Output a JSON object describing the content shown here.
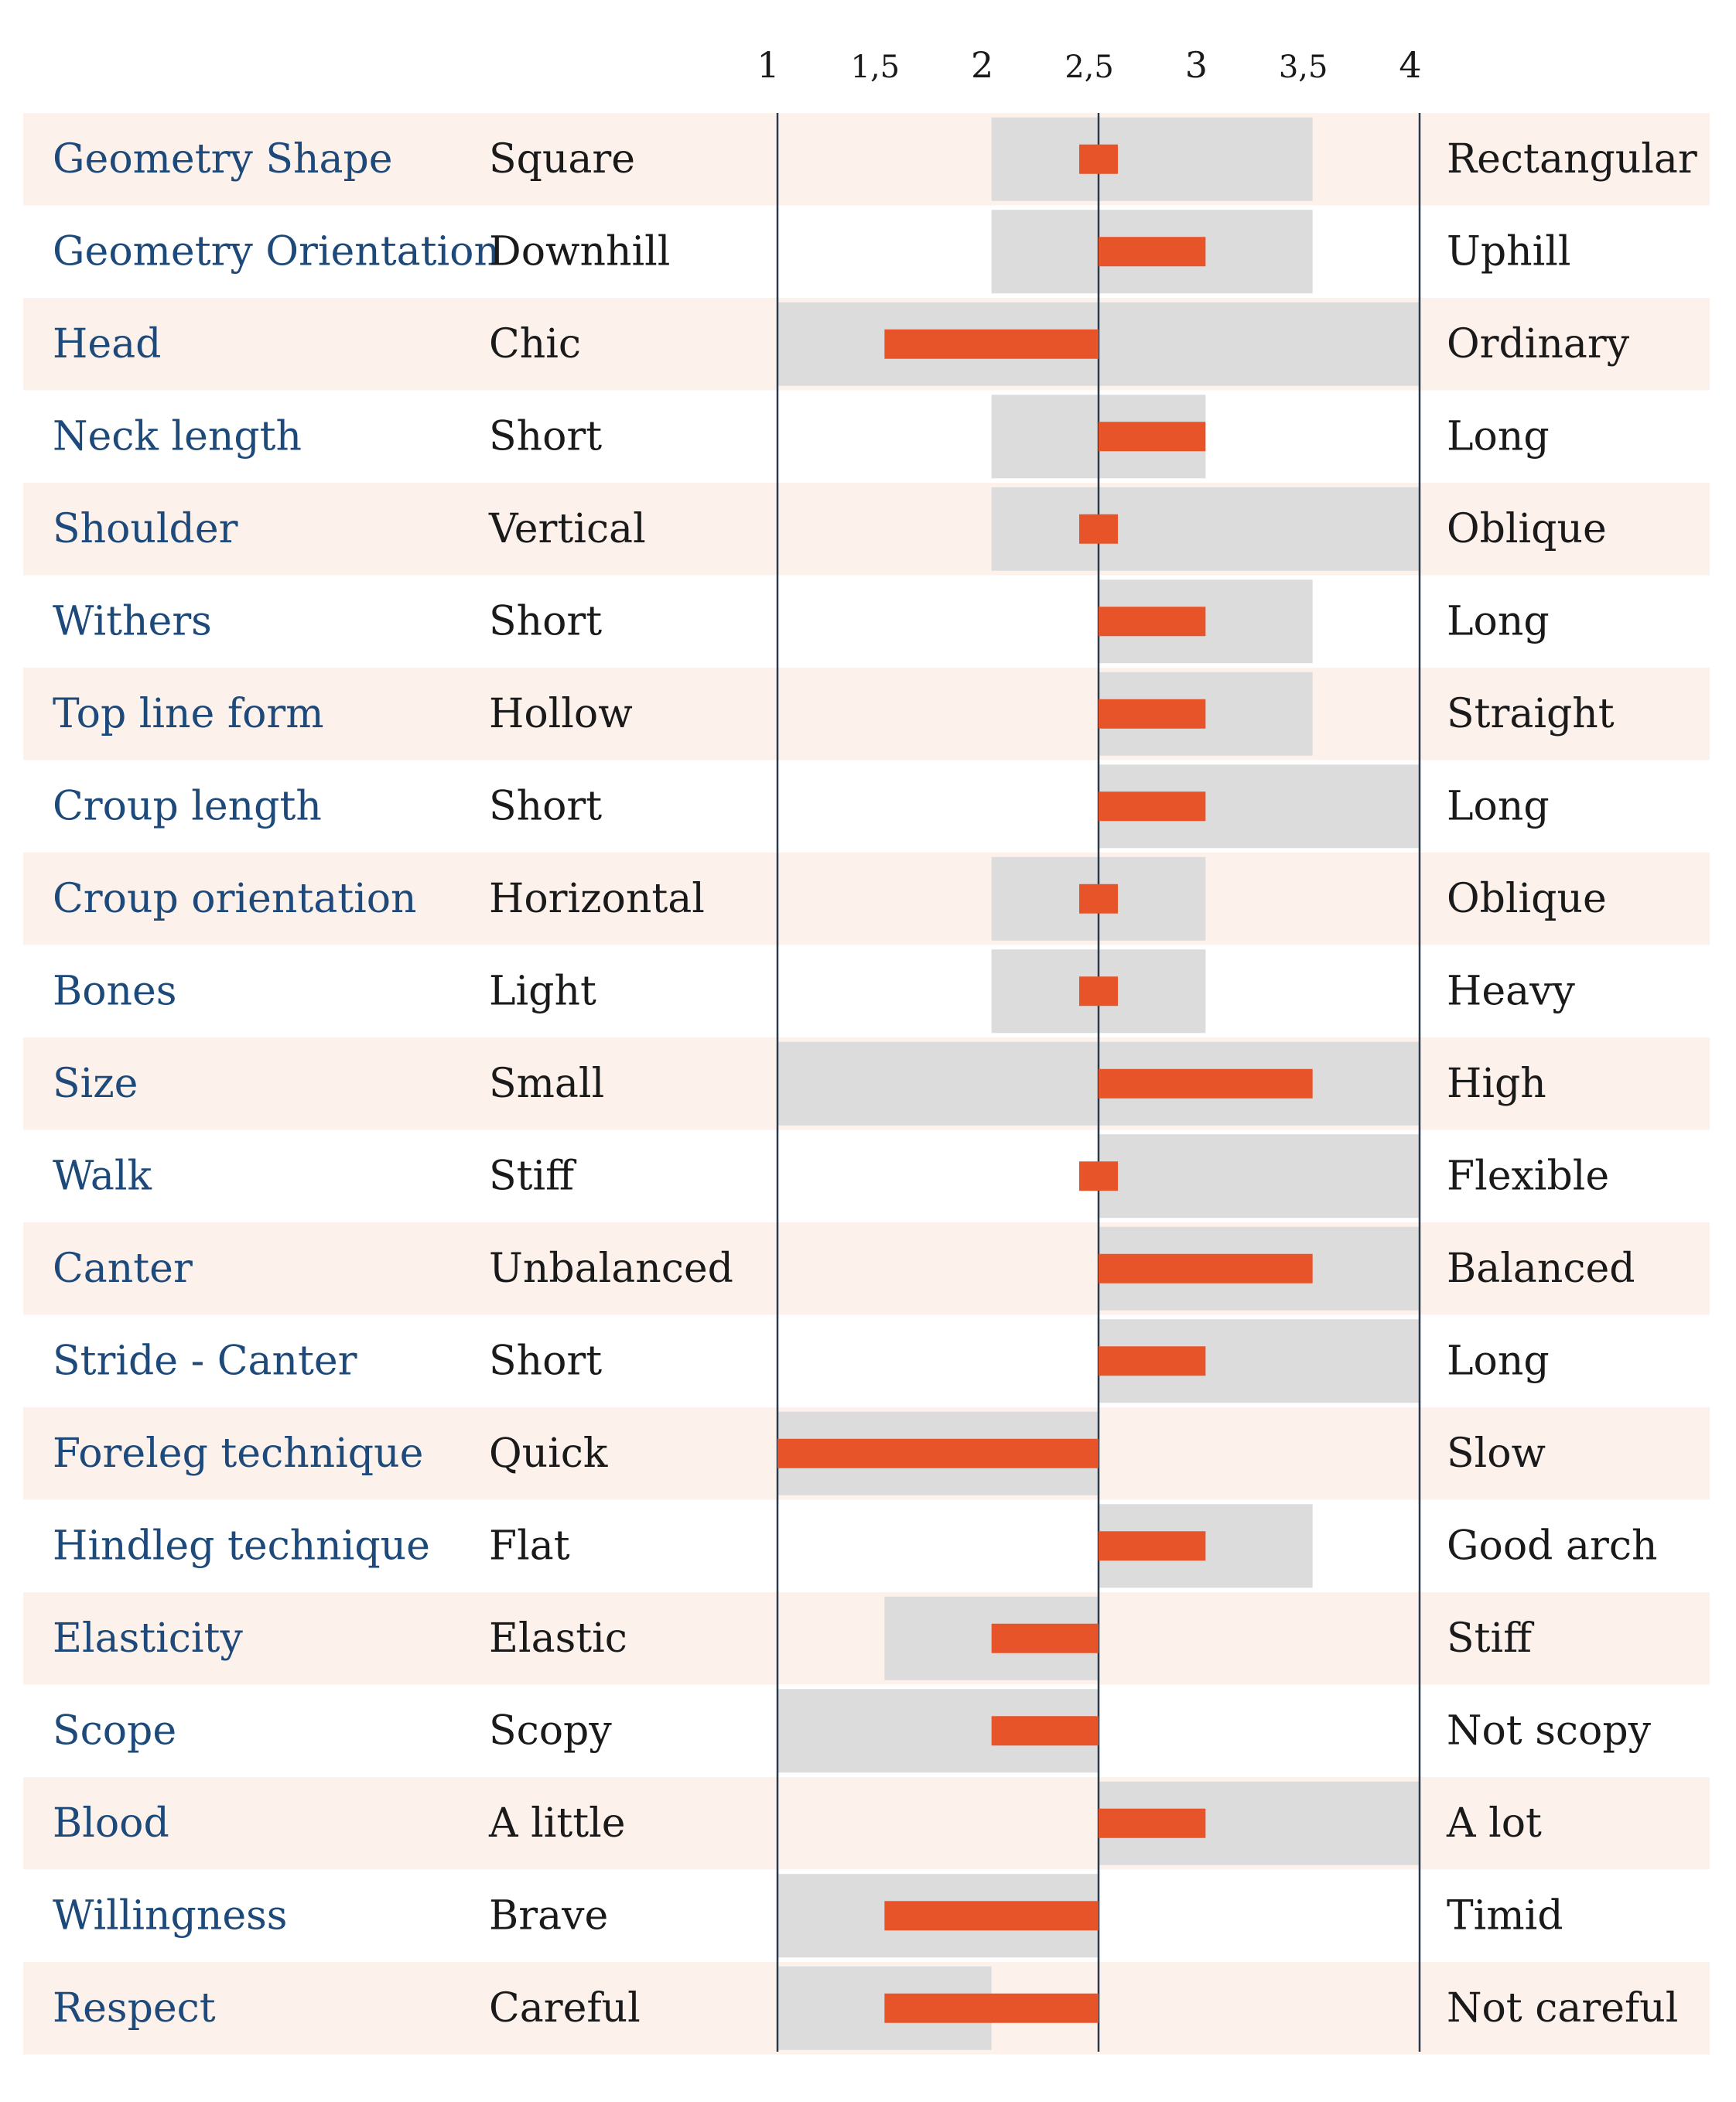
{
  "chart_data": {
    "type": "bar",
    "title": "",
    "xlabel": "",
    "ylabel": "",
    "xlim": [
      1,
      4
    ],
    "midpoint": 2.5,
    "ticks": [
      "1",
      "1,5",
      "2",
      "2,5",
      "3",
      "3,5",
      "4"
    ],
    "tick_values": [
      1,
      1.5,
      2,
      2.5,
      3,
      3.5,
      4
    ],
    "colors": {
      "trait_text": "#1d4a7a",
      "band_odd": "#fdf1ec",
      "band_even": "#ffffff",
      "range": "#dcdcdc",
      "score": "#e8542a",
      "axis": "#2a3a4a"
    },
    "rows": [
      {
        "trait": "Geometry Shape",
        "low": "Square",
        "high": "Rectangular",
        "range": [
          2,
          3.5
        ],
        "score": 2.5
      },
      {
        "trait": "Geometry Orientation",
        "low": "Downhill",
        "high": "Uphill",
        "range": [
          2,
          3.5
        ],
        "score": 3
      },
      {
        "trait": "Head",
        "low": "Chic",
        "high": "Ordinary",
        "range": [
          1,
          4
        ],
        "score": 1.5
      },
      {
        "trait": "Neck length",
        "low": "Short",
        "high": "Long",
        "range": [
          2,
          3
        ],
        "score": 3
      },
      {
        "trait": "Shoulder",
        "low": "Vertical",
        "high": "Oblique",
        "range": [
          2,
          4
        ],
        "score": 2.5
      },
      {
        "trait": "Withers",
        "low": "Short",
        "high": "Long",
        "range": [
          2.5,
          3.5
        ],
        "score": 3
      },
      {
        "trait": "Top line form",
        "low": "Hollow",
        "high": "Straight",
        "range": [
          2.5,
          3.5
        ],
        "score": 3
      },
      {
        "trait": "Croup length",
        "low": "Short",
        "high": "Long",
        "range": [
          2.5,
          4
        ],
        "score": 3
      },
      {
        "trait": "Croup orientation",
        "low": "Horizontal",
        "high": "Oblique",
        "range": [
          2,
          3
        ],
        "score": 2.5
      },
      {
        "trait": "Bones",
        "low": "Light",
        "high": "Heavy",
        "range": [
          2,
          3
        ],
        "score": 2.5
      },
      {
        "trait": "Size",
        "low": "Small",
        "high": "High",
        "range": [
          1,
          4
        ],
        "score": 3.5
      },
      {
        "trait": "Walk",
        "low": "Stiff",
        "high": "Flexible",
        "range": [
          2.5,
          4
        ],
        "score": 2.5
      },
      {
        "trait": "Canter",
        "low": "Unbalanced",
        "high": "Balanced",
        "range": [
          2.5,
          4
        ],
        "score": 3.5
      },
      {
        "trait": "Stride - Canter",
        "low": "Short",
        "high": "Long",
        "range": [
          2.5,
          4
        ],
        "score": 3
      },
      {
        "trait": "Foreleg technique",
        "low": "Quick",
        "high": "Slow",
        "range": [
          1,
          2.5
        ],
        "score": 1
      },
      {
        "trait": "Hindleg technique",
        "low": "Flat",
        "high": "Good arch",
        "range": [
          2.5,
          3.5
        ],
        "score": 3
      },
      {
        "trait": "Elasticity",
        "low": "Elastic",
        "high": "Stiff",
        "range": [
          1.5,
          2.5
        ],
        "score": 2
      },
      {
        "trait": "Scope",
        "low": "Scopy",
        "high": "Not scopy",
        "range": [
          1,
          2.5
        ],
        "score": 2
      },
      {
        "trait": "Blood",
        "low": "A little",
        "high": "A lot",
        "range": [
          2.5,
          4
        ],
        "score": 3
      },
      {
        "trait": "Willingness",
        "low": "Brave",
        "high": "Timid",
        "range": [
          1,
          2.5
        ],
        "score": 1.5
      },
      {
        "trait": "Respect",
        "low": "Careful",
        "high": "Not careful",
        "range": [
          1,
          2
        ],
        "score": 1.5
      }
    ]
  }
}
